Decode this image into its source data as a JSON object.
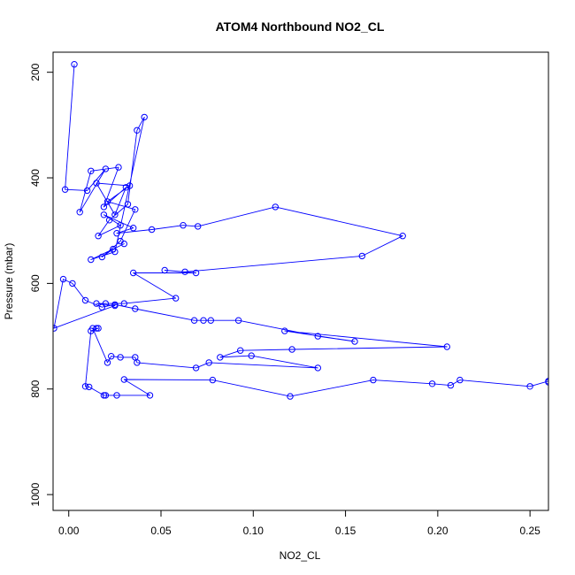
{
  "chart_data": {
    "type": "line",
    "title": "ATOM4 Northbound NO2_CL",
    "xlabel": "NO2_CL",
    "ylabel": "Pressure (mbar)",
    "xlim": [
      -0.0085,
      0.26
    ],
    "ylim": [
      1030,
      162
    ],
    "y_reversed": true,
    "x_ticks": [
      "0.00",
      "0.05",
      "0.10",
      "0.15",
      "0.20",
      "0.25"
    ],
    "y_ticks": [
      "200",
      "400",
      "600",
      "800",
      "1000"
    ],
    "grid": false,
    "legend": "none",
    "series": [
      {
        "color": "#0000ff",
        "marker": "open-circle",
        "x": [
          0.003,
          -0.002,
          0.01,
          0.02,
          0.006,
          0.012,
          0.027,
          0.019,
          0.031,
          0.025,
          0.015,
          0.033,
          0.021,
          0.036,
          0.028,
          0.018,
          0.024,
          0.03,
          0.012,
          0.025,
          0.041,
          0.037,
          0.032,
          0.022,
          0.016,
          0.028,
          0.019,
          0.035,
          0.026,
          0.045,
          0.062,
          0.07,
          0.112,
          0.181,
          0.159,
          0.063,
          0.052,
          0.069,
          0.035,
          0.058,
          0.03,
          0.02,
          0.015,
          0.025,
          -0.008,
          -0.003,
          0.002,
          0.009,
          0.018,
          0.025,
          0.036,
          0.068,
          0.073,
          0.077,
          0.092,
          0.135,
          0.155,
          0.117,
          0.205,
          0.121,
          0.093,
          0.082,
          0.099,
          0.135,
          0.076,
          0.069,
          0.037,
          0.036,
          0.028,
          0.023,
          0.021,
          0.013,
          0.015,
          0.016,
          0.012,
          0.009,
          0.011,
          0.019,
          0.02,
          0.026,
          0.044,
          0.03,
          0.078,
          0.12,
          0.165,
          0.197,
          0.207,
          0.212,
          0.25,
          0.26,
          0.26
        ],
        "y": [
          185,
          422,
          424,
          383,
          465,
          387,
          380,
          455,
          418,
          470,
          410,
          415,
          445,
          460,
          520,
          550,
          535,
          525,
          555,
          540,
          285,
          310,
          450,
          480,
          510,
          490,
          470,
          495,
          505,
          498,
          490,
          492,
          455,
          510,
          548,
          578,
          575,
          580,
          580,
          628,
          638,
          638,
          638,
          642,
          685,
          592,
          600,
          632,
          645,
          640,
          648,
          670,
          670,
          670,
          670,
          700,
          710,
          690,
          720,
          725,
          727,
          740,
          737,
          760,
          750,
          760,
          750,
          740,
          740,
          738,
          750,
          685,
          685,
          685,
          690,
          795,
          796,
          812,
          812,
          812,
          812,
          782,
          783,
          814,
          783,
          790,
          793,
          783,
          795,
          785,
          787
        ]
      }
    ]
  }
}
